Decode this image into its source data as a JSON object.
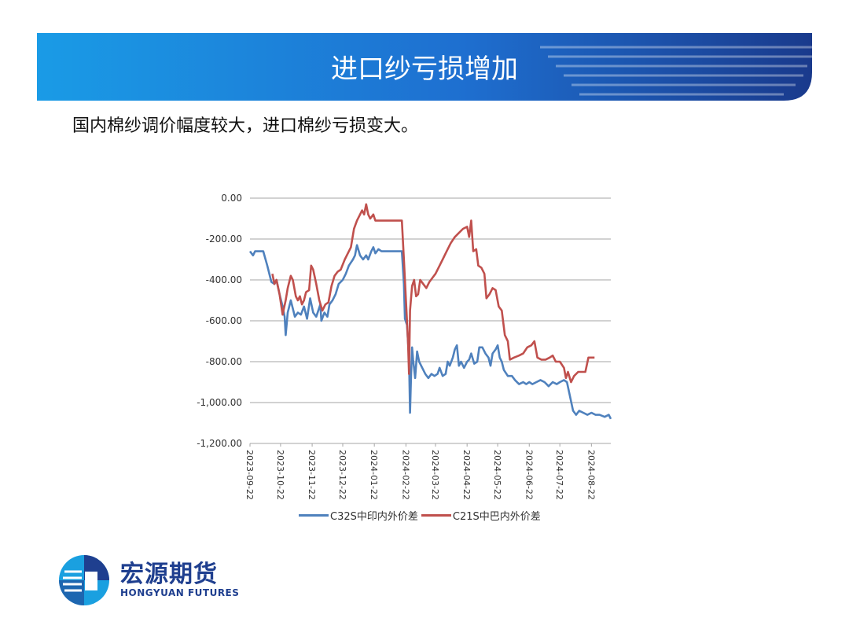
{
  "header": {
    "title": "进口纱亏损增加"
  },
  "subtitle": "国内棉纱调价幅度较大，进口棉纱亏损变大。",
  "colors": {
    "banner_blue": "#1e6fd0",
    "banner_dark": "#1a3a8c",
    "c32s_line": "#4f81bd",
    "c21s_line": "#c0504d",
    "logo_blue": "#1f3f8f"
  },
  "logo": {
    "name_cn": "宏源期货",
    "name_en": "HONGYUAN FUTURES",
    "icon": "hongyuan-logo-icon"
  },
  "chart_data": {
    "type": "line",
    "title": "",
    "xlabel": "",
    "ylabel": "",
    "ylim": [
      -1200,
      0
    ],
    "y_ticks": [
      0,
      -200,
      -400,
      -600,
      -800,
      -1000,
      -1200
    ],
    "y_tick_labels": [
      "0.00",
      "-200.00",
      "-400.00",
      "-600.00",
      "-800.00",
      "-1,000.00",
      "-1,200.00"
    ],
    "x_range": [
      "2023-09-22",
      "2024-09-10"
    ],
    "x_ticks": [
      "2023-09-22",
      "2023-10-22",
      "2023-11-22",
      "2023-12-22",
      "2024-01-22",
      "2024-02-22",
      "2024-03-22",
      "2024-04-22",
      "2024-05-22",
      "2024-06-22",
      "2024-07-22",
      "2024-08-22"
    ],
    "grid": "horizontal",
    "legend_position": "bottom",
    "series": [
      {
        "name": "C32S中印内外价差",
        "color": "#4f81bd",
        "points": [
          [
            "2023-09-22",
            -260
          ],
          [
            "2023-09-25",
            -280
          ],
          [
            "2023-09-27",
            -260
          ],
          [
            "2023-10-05",
            -260
          ],
          [
            "2023-10-09",
            -330
          ],
          [
            "2023-10-13",
            -410
          ],
          [
            "2023-10-16",
            -420
          ],
          [
            "2023-10-18",
            -400
          ],
          [
            "2023-10-21",
            -470
          ],
          [
            "2023-10-24",
            -530
          ],
          [
            "2023-10-26",
            -580
          ],
          [
            "2023-10-27",
            -670
          ],
          [
            "2023-10-29",
            -560
          ],
          [
            "2023-11-01",
            -500
          ],
          [
            "2023-11-02",
            -520
          ],
          [
            "2023-11-05",
            -580
          ],
          [
            "2023-11-08",
            -560
          ],
          [
            "2023-11-11",
            -570
          ],
          [
            "2023-11-14",
            -530
          ],
          [
            "2023-11-17",
            -590
          ],
          [
            "2023-11-20",
            -490
          ],
          [
            "2023-11-23",
            -560
          ],
          [
            "2023-11-26",
            -580
          ],
          [
            "2023-11-30",
            -520
          ],
          [
            "2023-12-01",
            -600
          ],
          [
            "2023-12-04",
            -560
          ],
          [
            "2023-12-07",
            -580
          ],
          [
            "2023-12-09",
            -520
          ],
          [
            "2023-12-12",
            -500
          ],
          [
            "2023-12-15",
            -470
          ],
          [
            "2023-12-18",
            -420
          ],
          [
            "2023-12-22",
            -400
          ],
          [
            "2023-12-25",
            -370
          ],
          [
            "2023-12-28",
            -330
          ],
          [
            "2024-01-01",
            -300
          ],
          [
            "2024-01-03",
            -280
          ],
          [
            "2024-01-05",
            -230
          ],
          [
            "2024-01-08",
            -280
          ],
          [
            "2024-01-11",
            -300
          ],
          [
            "2024-01-14",
            -280
          ],
          [
            "2024-01-16",
            -300
          ],
          [
            "2024-01-19",
            -260
          ],
          [
            "2024-01-21",
            -240
          ],
          [
            "2024-01-23",
            -270
          ],
          [
            "2024-01-26",
            -250
          ],
          [
            "2024-01-29",
            -260
          ],
          [
            "2024-02-02",
            -260
          ],
          [
            "2024-02-06",
            -260
          ],
          [
            "2024-02-14",
            -260
          ],
          [
            "2024-02-18",
            -260
          ],
          [
            "2024-02-20",
            -420
          ],
          [
            "2024-02-21",
            -590
          ],
          [
            "2024-02-23",
            -620
          ],
          [
            "2024-02-25",
            -780
          ],
          [
            "2024-02-26",
            -1050
          ],
          [
            "2024-02-27",
            -870
          ],
          [
            "2024-02-28",
            -730
          ],
          [
            "2024-02-29",
            -790
          ],
          [
            "2024-03-02",
            -880
          ],
          [
            "2024-03-04",
            -750
          ],
          [
            "2024-03-06",
            -800
          ],
          [
            "2024-03-09",
            -830
          ],
          [
            "2024-03-12",
            -860
          ],
          [
            "2024-03-15",
            -880
          ],
          [
            "2024-03-18",
            -860
          ],
          [
            "2024-03-21",
            -870
          ],
          [
            "2024-03-24",
            -860
          ],
          [
            "2024-03-26",
            -830
          ],
          [
            "2024-03-29",
            -870
          ],
          [
            "2024-04-01",
            -860
          ],
          [
            "2024-04-03",
            -800
          ],
          [
            "2024-04-05",
            -820
          ],
          [
            "2024-04-08",
            -780
          ],
          [
            "2024-04-10",
            -740
          ],
          [
            "2024-04-12",
            -720
          ],
          [
            "2024-04-14",
            -820
          ],
          [
            "2024-04-16",
            -800
          ],
          [
            "2024-04-19",
            -830
          ],
          [
            "2024-04-22",
            -800
          ],
          [
            "2024-04-24",
            -790
          ],
          [
            "2024-04-26",
            -760
          ],
          [
            "2024-04-29",
            -810
          ],
          [
            "2024-05-02",
            -800
          ],
          [
            "2024-05-04",
            -730
          ],
          [
            "2024-05-07",
            -730
          ],
          [
            "2024-05-10",
            -760
          ],
          [
            "2024-05-13",
            -780
          ],
          [
            "2024-05-15",
            -820
          ],
          [
            "2024-05-17",
            -760
          ],
          [
            "2024-05-20",
            -740
          ],
          [
            "2024-05-22",
            -720
          ],
          [
            "2024-05-24",
            -780
          ],
          [
            "2024-05-26",
            -800
          ],
          [
            "2024-05-28",
            -840
          ],
          [
            "2024-06-01",
            -870
          ],
          [
            "2024-06-05",
            -870
          ],
          [
            "2024-06-08",
            -890
          ],
          [
            "2024-06-12",
            -910
          ],
          [
            "2024-06-16",
            -900
          ],
          [
            "2024-06-19",
            -910
          ],
          [
            "2024-06-22",
            -900
          ],
          [
            "2024-06-25",
            -910
          ],
          [
            "2024-06-29",
            -900
          ],
          [
            "2024-07-03",
            -890
          ],
          [
            "2024-07-07",
            -900
          ],
          [
            "2024-07-11",
            -920
          ],
          [
            "2024-07-15",
            -900
          ],
          [
            "2024-07-19",
            -910
          ],
          [
            "2024-07-22",
            -900
          ],
          [
            "2024-07-26",
            -890
          ],
          [
            "2024-07-29",
            -900
          ],
          [
            "2024-08-01",
            -970
          ],
          [
            "2024-08-04",
            -1040
          ],
          [
            "2024-08-07",
            -1060
          ],
          [
            "2024-08-10",
            -1040
          ],
          [
            "2024-08-14",
            -1050
          ],
          [
            "2024-08-18",
            -1060
          ],
          [
            "2024-08-22",
            -1050
          ],
          [
            "2024-08-26",
            -1060
          ],
          [
            "2024-08-30",
            -1060
          ],
          [
            "2024-09-04",
            -1070
          ],
          [
            "2024-09-08",
            -1060
          ],
          [
            "2024-09-10",
            -1080
          ]
        ]
      },
      {
        "name": "C21S中巴内外价差",
        "color": "#c0504d",
        "points": [
          [
            "2023-10-14",
            -370
          ],
          [
            "2023-10-16",
            -420
          ],
          [
            "2023-10-18",
            -400
          ],
          [
            "2023-10-21",
            -470
          ],
          [
            "2023-10-24",
            -570
          ],
          [
            "2023-10-27",
            -500
          ],
          [
            "2023-10-29",
            -440
          ],
          [
            "2023-11-01",
            -380
          ],
          [
            "2023-11-03",
            -400
          ],
          [
            "2023-11-06",
            -480
          ],
          [
            "2023-11-08",
            -500
          ],
          [
            "2023-11-10",
            -480
          ],
          [
            "2023-11-12",
            -520
          ],
          [
            "2023-11-14",
            -500
          ],
          [
            "2023-11-16",
            -460
          ],
          [
            "2023-11-19",
            -450
          ],
          [
            "2023-11-21",
            -330
          ],
          [
            "2023-11-23",
            -350
          ],
          [
            "2023-11-26",
            -420
          ],
          [
            "2023-11-29",
            -500
          ],
          [
            "2023-12-02",
            -550
          ],
          [
            "2023-12-05",
            -520
          ],
          [
            "2023-12-08",
            -510
          ],
          [
            "2023-12-11",
            -430
          ],
          [
            "2023-12-14",
            -380
          ],
          [
            "2023-12-17",
            -360
          ],
          [
            "2023-12-20",
            -350
          ],
          [
            "2023-12-24",
            -300
          ],
          [
            "2023-12-27",
            -270
          ],
          [
            "2023-12-30",
            -240
          ],
          [
            "2024-01-02",
            -150
          ],
          [
            "2024-01-05",
            -110
          ],
          [
            "2024-01-08",
            -80
          ],
          [
            "2024-01-10",
            -60
          ],
          [
            "2024-01-12",
            -80
          ],
          [
            "2024-01-14",
            -30
          ],
          [
            "2024-01-16",
            -80
          ],
          [
            "2024-01-18",
            -100
          ],
          [
            "2024-01-21",
            -80
          ],
          [
            "2024-01-23",
            -110
          ],
          [
            "2024-02-02",
            -110
          ],
          [
            "2024-02-10",
            -110
          ],
          [
            "2024-02-18",
            -110
          ],
          [
            "2024-02-20",
            -300
          ],
          [
            "2024-02-22",
            -500
          ],
          [
            "2024-02-24",
            -700
          ],
          [
            "2024-02-25",
            -860
          ],
          [
            "2024-02-26",
            -550
          ],
          [
            "2024-02-28",
            -430
          ],
          [
            "2024-03-01",
            -400
          ],
          [
            "2024-03-03",
            -480
          ],
          [
            "2024-03-05",
            -470
          ],
          [
            "2024-03-07",
            -400
          ],
          [
            "2024-03-10",
            -420
          ],
          [
            "2024-03-13",
            -440
          ],
          [
            "2024-03-16",
            -410
          ],
          [
            "2024-03-19",
            -390
          ],
          [
            "2024-03-22",
            -370
          ],
          [
            "2024-03-26",
            -330
          ],
          [
            "2024-03-29",
            -300
          ],
          [
            "2024-04-02",
            -260
          ],
          [
            "2024-04-06",
            -220
          ],
          [
            "2024-04-10",
            -190
          ],
          [
            "2024-04-14",
            -170
          ],
          [
            "2024-04-18",
            -150
          ],
          [
            "2024-04-22",
            -140
          ],
          [
            "2024-04-24",
            -190
          ],
          [
            "2024-04-26",
            -110
          ],
          [
            "2024-04-28",
            -260
          ],
          [
            "2024-05-01",
            -250
          ],
          [
            "2024-05-03",
            -330
          ],
          [
            "2024-05-06",
            -340
          ],
          [
            "2024-05-09",
            -370
          ],
          [
            "2024-05-11",
            -490
          ],
          [
            "2024-05-14",
            -470
          ],
          [
            "2024-05-17",
            -440
          ],
          [
            "2024-05-20",
            -450
          ],
          [
            "2024-05-23",
            -530
          ],
          [
            "2024-05-26",
            -550
          ],
          [
            "2024-05-29",
            -670
          ],
          [
            "2024-06-01",
            -700
          ],
          [
            "2024-06-03",
            -790
          ],
          [
            "2024-06-07",
            -780
          ],
          [
            "2024-06-12",
            -770
          ],
          [
            "2024-06-16",
            -760
          ],
          [
            "2024-06-20",
            -730
          ],
          [
            "2024-06-24",
            -720
          ],
          [
            "2024-06-27",
            -700
          ],
          [
            "2024-06-30",
            -780
          ],
          [
            "2024-07-04",
            -790
          ],
          [
            "2024-07-08",
            -790
          ],
          [
            "2024-07-12",
            -780
          ],
          [
            "2024-07-15",
            -770
          ],
          [
            "2024-07-18",
            -800
          ],
          [
            "2024-07-22",
            -800
          ],
          [
            "2024-07-26",
            -830
          ],
          [
            "2024-07-28",
            -880
          ],
          [
            "2024-07-30",
            -850
          ],
          [
            "2024-08-02",
            -900
          ],
          [
            "2024-08-05",
            -870
          ],
          [
            "2024-08-09",
            -850
          ],
          [
            "2024-08-13",
            -850
          ],
          [
            "2024-08-16",
            -850
          ],
          [
            "2024-08-19",
            -780
          ],
          [
            "2024-08-22",
            -780
          ],
          [
            "2024-08-25",
            -780
          ]
        ]
      }
    ]
  }
}
